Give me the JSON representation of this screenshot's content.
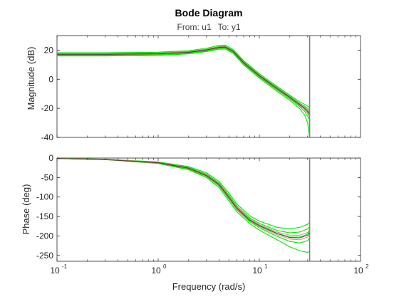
{
  "chart_data": {
    "type": "line",
    "title": "Bode Diagram",
    "subtitle_from_label": "From: u1",
    "subtitle_to_label": "To: y1",
    "xlabel": "Frequency (rad/s)",
    "x_scale": "log",
    "xlim": [
      0.1,
      100
    ],
    "x_ticks": [
      {
        "value": 0.1,
        "base": "10",
        "exp": "-1"
      },
      {
        "value": 1,
        "base": "10",
        "exp": "0"
      },
      {
        "value": 10,
        "base": "10",
        "exp": "1"
      },
      {
        "value": 100,
        "base": "10",
        "exp": "2"
      }
    ],
    "nyquist_frequency": 31.4,
    "grid": false,
    "legend": "none",
    "colors": {
      "envelope": "#00e600",
      "samples": "#e06666",
      "nominal": "#333333",
      "nyquist_line": "#808080",
      "axes": "#262626"
    },
    "panels": [
      {
        "name": "magnitude",
        "ylabel": "Magnitude (dB)",
        "ylim": [
          -40,
          30
        ],
        "y_ticks": [
          "20",
          "0",
          "-20",
          "-40"
        ],
        "y_tick_values": [
          20,
          0,
          -20,
          -40
        ],
        "series": [
          {
            "role": "envelope",
            "x": [
              0.1,
              0.3,
              1,
              2,
              3,
              4,
              4.6,
              5.5,
              7,
              10,
              15,
              20,
              25,
              28,
              30,
              31.4
            ],
            "y": [
              18.2,
              18.2,
              18.6,
              19.6,
              21.3,
              23.3,
              23.5,
              20.5,
              12.8,
              3.8,
              -5,
              -11,
              -15.5,
              -17.2,
              -18.5,
              -19.5
            ]
          },
          {
            "role": "envelope",
            "x": [
              0.1,
              0.3,
              1,
              2,
              3,
              4,
              4.6,
              5.5,
              7,
              10,
              15,
              20,
              25,
              28,
              30,
              31.4
            ],
            "y": [
              17.6,
              17.6,
              18.0,
              19.0,
              20.6,
              22.5,
              22.7,
              19.8,
              12.0,
              3.0,
              -5.8,
              -11.8,
              -16.5,
              -18.5,
              -20,
              -21.5
            ]
          },
          {
            "role": "envelope",
            "x": [
              0.1,
              0.3,
              1,
              2,
              3,
              4,
              4.6,
              5.5,
              7,
              10,
              15,
              20,
              25,
              28,
              30,
              31.4
            ],
            "y": [
              17.0,
              17.0,
              17.4,
              18.4,
              20.0,
              21.8,
              22.0,
              19.0,
              11.2,
              2.2,
              -6.6,
              -12.6,
              -17.6,
              -20,
              -22.5,
              -25
            ]
          },
          {
            "role": "envelope",
            "x": [
              0.1,
              0.3,
              1,
              2,
              3,
              4,
              4.6,
              5.5,
              7,
              10,
              15,
              20,
              25,
              28,
              30,
              31.4
            ],
            "y": [
              16.5,
              16.5,
              16.9,
              17.9,
              19.5,
              21.2,
              21.4,
              18.4,
              10.5,
              1.5,
              -7.5,
              -13.5,
              -18.8,
              -22,
              -25.5,
              -28
            ]
          },
          {
            "role": "envelope",
            "x": [
              0.1,
              0.3,
              1,
              2,
              3,
              4,
              4.6,
              5.5,
              7,
              10,
              15,
              20,
              25,
              28,
              30,
              31.4
            ],
            "y": [
              16.0,
              16.0,
              16.4,
              17.4,
              19.0,
              20.6,
              20.8,
              17.8,
              9.8,
              0.8,
              -8.4,
              -14.5,
              -20.2,
              -24.5,
              -30,
              -40
            ]
          },
          {
            "role": "samples",
            "x": [
              0.1,
              0.3,
              1,
              2,
              3,
              4,
              4.6,
              5.5,
              7,
              10,
              15,
              20,
              25,
              28,
              30,
              31.4
            ],
            "y": [
              17.4,
              17.4,
              17.8,
              18.8,
              20.4,
              22.2,
              22.4,
              19.5,
              11.7,
              2.7,
              -6.1,
              -12.1,
              -17.0,
              -19.2,
              -21,
              -23
            ]
          },
          {
            "role": "samples",
            "x": [
              0.1,
              0.3,
              1,
              2,
              3,
              4,
              4.6,
              5.5,
              7,
              10,
              15,
              20,
              25,
              28,
              30,
              31.4
            ],
            "y": [
              16.9,
              16.9,
              17.3,
              18.3,
              19.9,
              21.6,
              21.8,
              18.9,
              11.0,
              2.0,
              -6.9,
              -12.9,
              -18.0,
              -20.8,
              -23.5,
              -26
            ]
          },
          {
            "role": "nominal",
            "x": [
              0.1,
              0.3,
              1,
              2,
              3,
              4,
              4.6,
              5.5,
              7,
              10,
              15,
              20,
              25,
              28,
              30,
              31.4
            ],
            "y": [
              17.1,
              17.1,
              17.5,
              18.5,
              20.1,
              21.9,
              22.1,
              19.2,
              11.4,
              2.4,
              -6.5,
              -12.5,
              -17.5,
              -20,
              -22,
              -24
            ]
          }
        ]
      },
      {
        "name": "phase",
        "ylabel": "Phase (deg)",
        "ylim": [
          -265,
          0
        ],
        "y_ticks": [
          "0",
          "-50",
          "-100",
          "-150",
          "-200",
          "-250"
        ],
        "y_tick_values": [
          0,
          -50,
          -100,
          -150,
          -200,
          -250
        ],
        "series": [
          {
            "role": "envelope",
            "x": [
              0.1,
              0.3,
              1,
              2,
              3,
              4,
              5,
              6,
              8,
              10,
              15,
              20,
              25,
              30,
              31.4
            ],
            "y": [
              -1,
              -3,
              -10,
              -22,
              -38,
              -60,
              -90,
              -118,
              -148,
              -162,
              -178,
              -182,
              -178,
              -170,
              -165
            ]
          },
          {
            "role": "envelope",
            "x": [
              0.1,
              0.3,
              1,
              2,
              3,
              4,
              5,
              6,
              8,
              10,
              15,
              20,
              25,
              30,
              31.4
            ],
            "y": [
              -1,
              -3,
              -11,
              -24,
              -41,
              -64,
              -95,
              -123,
              -153,
              -168,
              -186,
              -192,
              -190,
              -182,
              -176
            ]
          },
          {
            "role": "envelope",
            "x": [
              0.1,
              0.3,
              1,
              2,
              3,
              4,
              5,
              6,
              8,
              10,
              15,
              20,
              25,
              30,
              31.4
            ],
            "y": [
              -1,
              -4,
              -12,
              -26,
              -44,
              -68,
              -100,
              -128,
              -158,
              -173,
              -193,
              -203,
              -203,
              -195,
              -188
            ]
          },
          {
            "role": "envelope",
            "x": [
              0.1,
              0.3,
              1,
              2,
              3,
              4,
              5,
              6,
              8,
              10,
              15,
              20,
              25,
              30,
              31.4
            ],
            "y": [
              -1,
              -4,
              -13,
              -28,
              -47,
              -72,
              -105,
              -133,
              -163,
              -179,
              -201,
              -214,
              -218,
              -212,
              -205
            ]
          },
          {
            "role": "envelope",
            "x": [
              0.1,
              0.3,
              1,
              2,
              3,
              4,
              5,
              6,
              8,
              10,
              15,
              20,
              25,
              30,
              31.4
            ],
            "y": [
              -1,
              -4,
              -14,
              -30,
              -50,
              -76,
              -110,
              -138,
              -168,
              -185,
              -210,
              -228,
              -238,
              -242,
              -240
            ]
          },
          {
            "role": "samples",
            "x": [
              0.1,
              0.3,
              1,
              2,
              3,
              4,
              5,
              6,
              8,
              10,
              15,
              20,
              25,
              30,
              31.4
            ],
            "y": [
              -1,
              -3,
              -11,
              -25,
              -43,
              -66,
              -98,
              -126,
              -156,
              -171,
              -190,
              -198,
              -198,
              -191,
              -185
            ]
          },
          {
            "role": "samples",
            "x": [
              0.1,
              0.3,
              1,
              2,
              3,
              4,
              5,
              6,
              8,
              10,
              15,
              20,
              25,
              30,
              31.4
            ],
            "y": [
              -1,
              -4,
              -13,
              -27,
              -46,
              -70,
              -103,
              -131,
              -161,
              -176,
              -197,
              -208,
              -210,
              -203,
              -196
            ]
          },
          {
            "role": "nominal",
            "x": [
              0.1,
              0.3,
              1,
              2,
              3,
              4,
              5,
              6,
              8,
              10,
              15,
              20,
              25,
              30,
              31.4
            ],
            "y": [
              -1,
              -4,
              -12,
              -26,
              -45,
              -68,
              -101,
              -129,
              -159,
              -174,
              -194,
              -204,
              -205,
              -198,
              -191
            ]
          }
        ]
      }
    ]
  }
}
